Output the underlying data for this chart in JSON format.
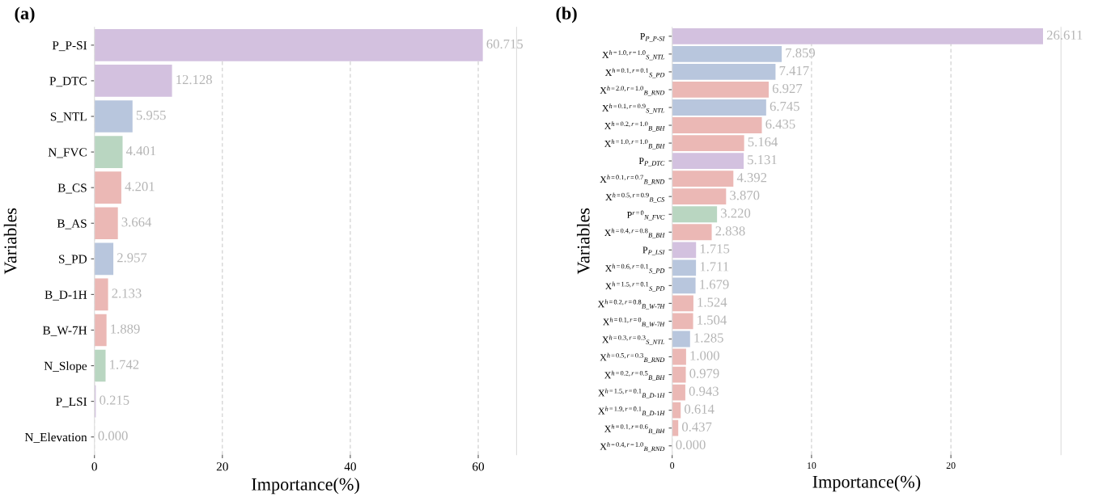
{
  "chart_data": [
    {
      "type": "bar",
      "orientation": "horizontal",
      "title": "(a)",
      "xlabel": "Importance(%)",
      "ylabel": "Variables",
      "categories": [
        "P_P-SI",
        "P_DTC",
        "S_NTL",
        "N_FVC",
        "B_CS",
        "B_AS",
        "S_PD",
        "B_D-1H",
        "B_W-7H",
        "N_Slope",
        "P_LSI",
        "N_Elevation"
      ],
      "values": [
        60.715,
        12.128,
        5.955,
        4.401,
        4.201,
        3.664,
        2.957,
        2.133,
        1.889,
        1.742,
        0.215,
        0.0
      ],
      "colors": [
        "#d3c1df",
        "#d3c1df",
        "#b8c6dd",
        "#b9d6c1",
        "#ebb8b5",
        "#ebb8b5",
        "#b8c6dd",
        "#ebb8b5",
        "#ebb8b5",
        "#b9d6c1",
        "#d3c1df",
        "#b9d6c1"
      ],
      "value_labels": [
        "60.715",
        "12.128",
        "5.955",
        "4.401",
        "4.201",
        "3.664",
        "2.957",
        "2.133",
        "1.889",
        "1.742",
        "0.215",
        "0.000"
      ],
      "xlim": [
        0,
        66
      ],
      "xticks": [
        0,
        20,
        40,
        60
      ],
      "grid": "x",
      "data_labels": true
    },
    {
      "type": "bar",
      "orientation": "horizontal",
      "title": "(b)",
      "xlabel": "Importance(%)",
      "ylabel": "Variables",
      "categories": [
        "P$_{P_P-SI}$",
        "X$^{h=1.0,r=1.0}$$_{S_NTL}$",
        "X$^{h=0.1,r=0.1}$$_{S_PD}$",
        "X$^{h=2.0,r=1.0}$$_{B_RND}$",
        "X$^{h=0.1,r=0.9}$$_{S_NTL}$",
        "X$^{h=0.2,r=1.0}$$_{B_BH}$",
        "X$^{h=1.0,r=1.0}$$_{B_BH}$",
        "P$_{P_DTC}$",
        "X$^{h=0.1,r=0.7}$$_{B_RND}$",
        "X$^{h=0.5,r=0.9}$$_{B_CS}$",
        "P$^{r=0}$$_{N_FVC}$",
        "X$^{h=0.4,r=0.8}$$_{B_BH}$",
        "P$_{P_LSI}$",
        "X$^{h=0.6,r=0.1}$$_{S_PD}$",
        "X$^{h=1.5,r=0.1}$$_{S_PD}$",
        "X$^{h=0.2,r=0.8}$$_{B_W-7H}$",
        "X$^{h=0.1,r=0}$$_{B_W-7H}$",
        "X$^{h=0.3,r=0.3}$$_{S_NTL}$",
        "X$^{h=0.5,r=0.3}$$_{B_RND}$",
        "X$^{h=0.2,r=0.5}$$_{B_BH}$",
        "X$^{h=1.5,r=0.1}$$_{B_D-1H}$",
        "X$^{h=1.9,r=0.1}$$_{B_D-1H}$",
        "X$^{h=0.1,r=0.6}$$_{B_BH}$",
        "X$^{h=0.4,r=1.0}$$_{B_RND}$"
      ],
      "values": [
        26.611,
        7.859,
        7.417,
        6.927,
        6.745,
        6.435,
        5.164,
        5.131,
        4.392,
        3.87,
        3.22,
        2.838,
        1.715,
        1.711,
        1.679,
        1.524,
        1.504,
        1.285,
        1.0,
        0.979,
        0.943,
        0.614,
        0.437,
        0.0
      ],
      "colors": [
        "#d3c1df",
        "#b8c6dd",
        "#b8c6dd",
        "#ebb8b5",
        "#b8c6dd",
        "#ebb8b5",
        "#ebb8b5",
        "#d3c1df",
        "#ebb8b5",
        "#ebb8b5",
        "#b9d6c1",
        "#ebb8b5",
        "#d3c1df",
        "#b8c6dd",
        "#b8c6dd",
        "#ebb8b5",
        "#ebb8b5",
        "#b8c6dd",
        "#ebb8b5",
        "#ebb8b5",
        "#ebb8b5",
        "#ebb8b5",
        "#ebb8b5",
        "#ebb8b5"
      ],
      "value_labels": [
        "26.611",
        "7.859",
        "7.417",
        "6.927",
        "6.745",
        "6.435",
        "5.164",
        "5.131",
        "4.392",
        "3.870",
        "3.220",
        "2.838",
        "1.715",
        "1.711",
        "1.679",
        "1.524",
        "1.504",
        "1.285",
        "1.000",
        "0.979",
        "0.943",
        "0.614",
        "0.437",
        "0.000"
      ],
      "xlim": [
        0,
        27.9
      ],
      "xticks": [
        0,
        10,
        20
      ],
      "grid": "x",
      "data_labels": true
    }
  ]
}
